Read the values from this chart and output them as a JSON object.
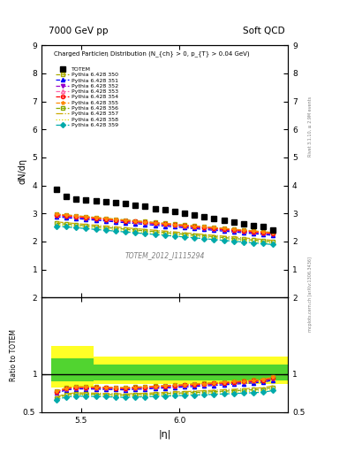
{
  "title_left": "7000 GeV pp",
  "title_right": "Soft QCD",
  "ylabel_main": "dN/dη",
  "ylabel_ratio": "Ratio to TOTEM",
  "xlabel": "|η|",
  "inner_title": "Charged Particleη Distribution (N_{ch} > 0, p_{T} > 0.04 GeV)",
  "watermark": "TOTEM_2012_I1115294",
  "right_label_top": "Rivet 3.1.10, ≥ 2.9M events",
  "right_label_bot": "mcplots.cern.ch [arXiv:1306.3436]",
  "eta_values": [
    5.375,
    5.425,
    5.475,
    5.525,
    5.575,
    5.625,
    5.675,
    5.725,
    5.775,
    5.825,
    5.875,
    5.925,
    5.975,
    6.025,
    6.075,
    6.125,
    6.175,
    6.225,
    6.275,
    6.325,
    6.375,
    6.425,
    6.475
  ],
  "totem_values": [
    3.85,
    3.6,
    3.5,
    3.47,
    3.44,
    3.42,
    3.39,
    3.37,
    3.3,
    3.25,
    3.18,
    3.12,
    3.06,
    3.0,
    2.94,
    2.88,
    2.82,
    2.76,
    2.7,
    2.64,
    2.58,
    2.52,
    2.41
  ],
  "xlim": [
    5.3,
    6.55
  ],
  "ylim_main": [
    0,
    9
  ],
  "ylim_ratio": [
    0.5,
    2.0
  ],
  "yticks_main": [
    1,
    2,
    3,
    4,
    5,
    6,
    7,
    8,
    9
  ],
  "yticks_ratio": [
    1.0,
    2.0
  ],
  "ytick_labels_ratio": [
    "1",
    "2"
  ],
  "xticks": [
    5.5,
    6.0
  ],
  "pythia_series": [
    {
      "label": "Pythia 6.428 350",
      "color": "#aaaa00",
      "marker": "s",
      "markerfacecolor": "none",
      "linestyle": "--",
      "values": [
        2.98,
        2.95,
        2.92,
        2.89,
        2.86,
        2.83,
        2.8,
        2.77,
        2.74,
        2.71,
        2.68,
        2.65,
        2.62,
        2.59,
        2.56,
        2.53,
        2.5,
        2.47,
        2.44,
        2.41,
        2.38,
        2.35,
        2.32
      ]
    },
    {
      "label": "Pythia 6.428 351",
      "color": "#0000ff",
      "marker": "^",
      "markerfacecolor": "#0000ff",
      "linestyle": "--",
      "values": [
        2.88,
        2.85,
        2.82,
        2.79,
        2.76,
        2.73,
        2.7,
        2.67,
        2.64,
        2.61,
        2.58,
        2.55,
        2.52,
        2.49,
        2.46,
        2.43,
        2.4,
        2.37,
        2.34,
        2.31,
        2.28,
        2.25,
        2.22
      ]
    },
    {
      "label": "Pythia 6.428 352",
      "color": "#9900cc",
      "marker": "v",
      "markerfacecolor": "#9900cc",
      "linestyle": "--",
      "values": [
        2.92,
        2.89,
        2.86,
        2.83,
        2.8,
        2.77,
        2.74,
        2.71,
        2.68,
        2.65,
        2.62,
        2.59,
        2.56,
        2.53,
        2.5,
        2.47,
        2.44,
        2.41,
        2.38,
        2.35,
        2.32,
        2.29,
        2.26
      ]
    },
    {
      "label": "Pythia 6.428 353",
      "color": "#ff66aa",
      "marker": "^",
      "markerfacecolor": "none",
      "linestyle": "--",
      "values": [
        2.96,
        2.93,
        2.9,
        2.87,
        2.84,
        2.81,
        2.78,
        2.75,
        2.72,
        2.69,
        2.66,
        2.63,
        2.6,
        2.57,
        2.54,
        2.51,
        2.48,
        2.45,
        2.42,
        2.39,
        2.36,
        2.33,
        2.3
      ]
    },
    {
      "label": "Pythia 6.428 354",
      "color": "#ff0000",
      "marker": "o",
      "markerfacecolor": "none",
      "linestyle": "--",
      "values": [
        2.95,
        2.92,
        2.89,
        2.86,
        2.83,
        2.8,
        2.77,
        2.74,
        2.71,
        2.68,
        2.65,
        2.62,
        2.59,
        2.56,
        2.53,
        2.5,
        2.47,
        2.44,
        2.41,
        2.38,
        2.35,
        2.32,
        2.29
      ]
    },
    {
      "label": "Pythia 6.428 355",
      "color": "#ff8800",
      "marker": "*",
      "markerfacecolor": "#ff8800",
      "linestyle": "--",
      "values": [
        2.97,
        2.94,
        2.91,
        2.88,
        2.85,
        2.82,
        2.79,
        2.76,
        2.73,
        2.7,
        2.67,
        2.64,
        2.61,
        2.58,
        2.55,
        2.52,
        2.49,
        2.46,
        2.43,
        2.4,
        2.37,
        2.34,
        2.31
      ]
    },
    {
      "label": "Pythia 6.428 356",
      "color": "#88aa00",
      "marker": "s",
      "markerfacecolor": "none",
      "linestyle": "--",
      "values": [
        2.65,
        2.62,
        2.59,
        2.56,
        2.53,
        2.5,
        2.47,
        2.44,
        2.41,
        2.38,
        2.35,
        2.32,
        2.29,
        2.26,
        2.23,
        2.2,
        2.17,
        2.14,
        2.11,
        2.08,
        2.05,
        2.02,
        1.99
      ]
    },
    {
      "label": "Pythia 6.428 357",
      "color": "#ccaa00",
      "marker": "",
      "markerfacecolor": "none",
      "linestyle": "-.",
      "values": [
        2.7,
        2.67,
        2.64,
        2.61,
        2.58,
        2.55,
        2.52,
        2.49,
        2.46,
        2.43,
        2.4,
        2.37,
        2.34,
        2.31,
        2.28,
        2.25,
        2.22,
        2.19,
        2.16,
        2.13,
        2.1,
        2.07,
        2.04
      ]
    },
    {
      "label": "Pythia 6.428 358",
      "color": "#dddd00",
      "marker": "",
      "markerfacecolor": "none",
      "linestyle": ":",
      "values": [
        2.6,
        2.57,
        2.54,
        2.51,
        2.48,
        2.45,
        2.42,
        2.39,
        2.36,
        2.33,
        2.3,
        2.27,
        2.24,
        2.21,
        2.18,
        2.15,
        2.12,
        2.09,
        2.06,
        2.03,
        2.0,
        1.97,
        1.94
      ]
    },
    {
      "label": "Pythia 6.428 359",
      "color": "#00aaaa",
      "marker": "D",
      "markerfacecolor": "#00aaaa",
      "linestyle": "--",
      "values": [
        2.55,
        2.52,
        2.49,
        2.46,
        2.43,
        2.4,
        2.37,
        2.34,
        2.31,
        2.28,
        2.25,
        2.22,
        2.19,
        2.16,
        2.13,
        2.1,
        2.07,
        2.04,
        2.01,
        1.98,
        1.95,
        1.92,
        1.89
      ]
    }
  ],
  "error_band_yellow": [
    [
      5.35,
      5.565,
      0.82,
      1.37
    ],
    [
      5.565,
      6.55,
      0.87,
      1.23
    ]
  ],
  "error_band_green": [
    [
      5.35,
      5.565,
      0.9,
      1.2
    ],
    [
      5.565,
      6.55,
      0.92,
      1.12
    ]
  ]
}
